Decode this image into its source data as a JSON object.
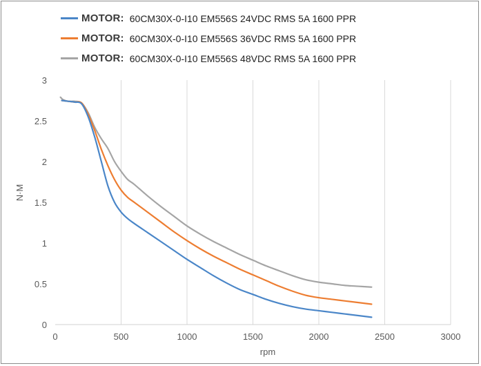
{
  "chart_data": {
    "type": "line",
    "xlabel": "rpm",
    "ylabel": "N·M",
    "xlim": [
      0,
      3000
    ],
    "ylim": [
      0,
      3
    ],
    "x_ticks": [
      "0",
      "500",
      "1000",
      "1500",
      "2000",
      "2500",
      "3000"
    ],
    "y_ticks": [
      "0",
      "0.5",
      "1",
      "1.5",
      "2",
      "2.5",
      "3"
    ],
    "grid": "vertical",
    "legend_position": "top",
    "series": [
      {
        "name": "60CM30X-0-I10  EM556S 24VDC RMS 5A 1600 PPR",
        "legend_prefix": "MOTOR:",
        "color": "#4a86c8",
        "points": [
          [
            50,
            2.75
          ],
          [
            100,
            2.74
          ],
          [
            150,
            2.73
          ],
          [
            200,
            2.71
          ],
          [
            250,
            2.55
          ],
          [
            300,
            2.3
          ],
          [
            350,
            2.0
          ],
          [
            400,
            1.7
          ],
          [
            450,
            1.5
          ],
          [
            500,
            1.38
          ],
          [
            550,
            1.3
          ],
          [
            600,
            1.24
          ],
          [
            700,
            1.13
          ],
          [
            800,
            1.02
          ],
          [
            900,
            0.91
          ],
          [
            1000,
            0.8
          ],
          [
            1100,
            0.7
          ],
          [
            1200,
            0.6
          ],
          [
            1300,
            0.51
          ],
          [
            1400,
            0.43
          ],
          [
            1500,
            0.37
          ],
          [
            1600,
            0.31
          ],
          [
            1700,
            0.26
          ],
          [
            1800,
            0.22
          ],
          [
            1900,
            0.19
          ],
          [
            2000,
            0.17
          ],
          [
            2100,
            0.15
          ],
          [
            2200,
            0.13
          ],
          [
            2300,
            0.11
          ],
          [
            2400,
            0.09
          ]
        ]
      },
      {
        "name": "60CM30X-0-I10  EM556S 36VDC RMS 5A 1600 PPR",
        "legend_prefix": "MOTOR:",
        "color": "#ed7d31",
        "points": [
          [
            50,
            2.75
          ],
          [
            100,
            2.74
          ],
          [
            150,
            2.73
          ],
          [
            200,
            2.72
          ],
          [
            250,
            2.58
          ],
          [
            300,
            2.38
          ],
          [
            350,
            2.15
          ],
          [
            400,
            1.95
          ],
          [
            450,
            1.78
          ],
          [
            500,
            1.65
          ],
          [
            550,
            1.56
          ],
          [
            600,
            1.5
          ],
          [
            700,
            1.38
          ],
          [
            800,
            1.26
          ],
          [
            900,
            1.14
          ],
          [
            1000,
            1.03
          ],
          [
            1100,
            0.93
          ],
          [
            1200,
            0.84
          ],
          [
            1300,
            0.76
          ],
          [
            1400,
            0.68
          ],
          [
            1500,
            0.61
          ],
          [
            1600,
            0.54
          ],
          [
            1700,
            0.47
          ],
          [
            1800,
            0.41
          ],
          [
            1900,
            0.36
          ],
          [
            2000,
            0.33
          ],
          [
            2100,
            0.31
          ],
          [
            2200,
            0.29
          ],
          [
            2300,
            0.27
          ],
          [
            2400,
            0.25
          ]
        ]
      },
      {
        "name": "60CM30X-0-I10  EM556S 48VDC RMS 5A 1600 PPR",
        "legend_prefix": "MOTOR:",
        "color": "#a5a5a5",
        "points": [
          [
            40,
            2.79
          ],
          [
            60,
            2.76
          ],
          [
            100,
            2.74
          ],
          [
            150,
            2.74
          ],
          [
            200,
            2.72
          ],
          [
            250,
            2.6
          ],
          [
            300,
            2.42
          ],
          [
            350,
            2.28
          ],
          [
            400,
            2.16
          ],
          [
            450,
            2.0
          ],
          [
            500,
            1.88
          ],
          [
            550,
            1.78
          ],
          [
            600,
            1.72
          ],
          [
            700,
            1.58
          ],
          [
            800,
            1.45
          ],
          [
            900,
            1.33
          ],
          [
            1000,
            1.21
          ],
          [
            1100,
            1.11
          ],
          [
            1200,
            1.02
          ],
          [
            1300,
            0.94
          ],
          [
            1400,
            0.86
          ],
          [
            1500,
            0.79
          ],
          [
            1600,
            0.72
          ],
          [
            1700,
            0.66
          ],
          [
            1800,
            0.6
          ],
          [
            1900,
            0.55
          ],
          [
            2000,
            0.52
          ],
          [
            2100,
            0.5
          ],
          [
            2200,
            0.48
          ],
          [
            2300,
            0.47
          ],
          [
            2400,
            0.46
          ]
        ]
      }
    ]
  }
}
